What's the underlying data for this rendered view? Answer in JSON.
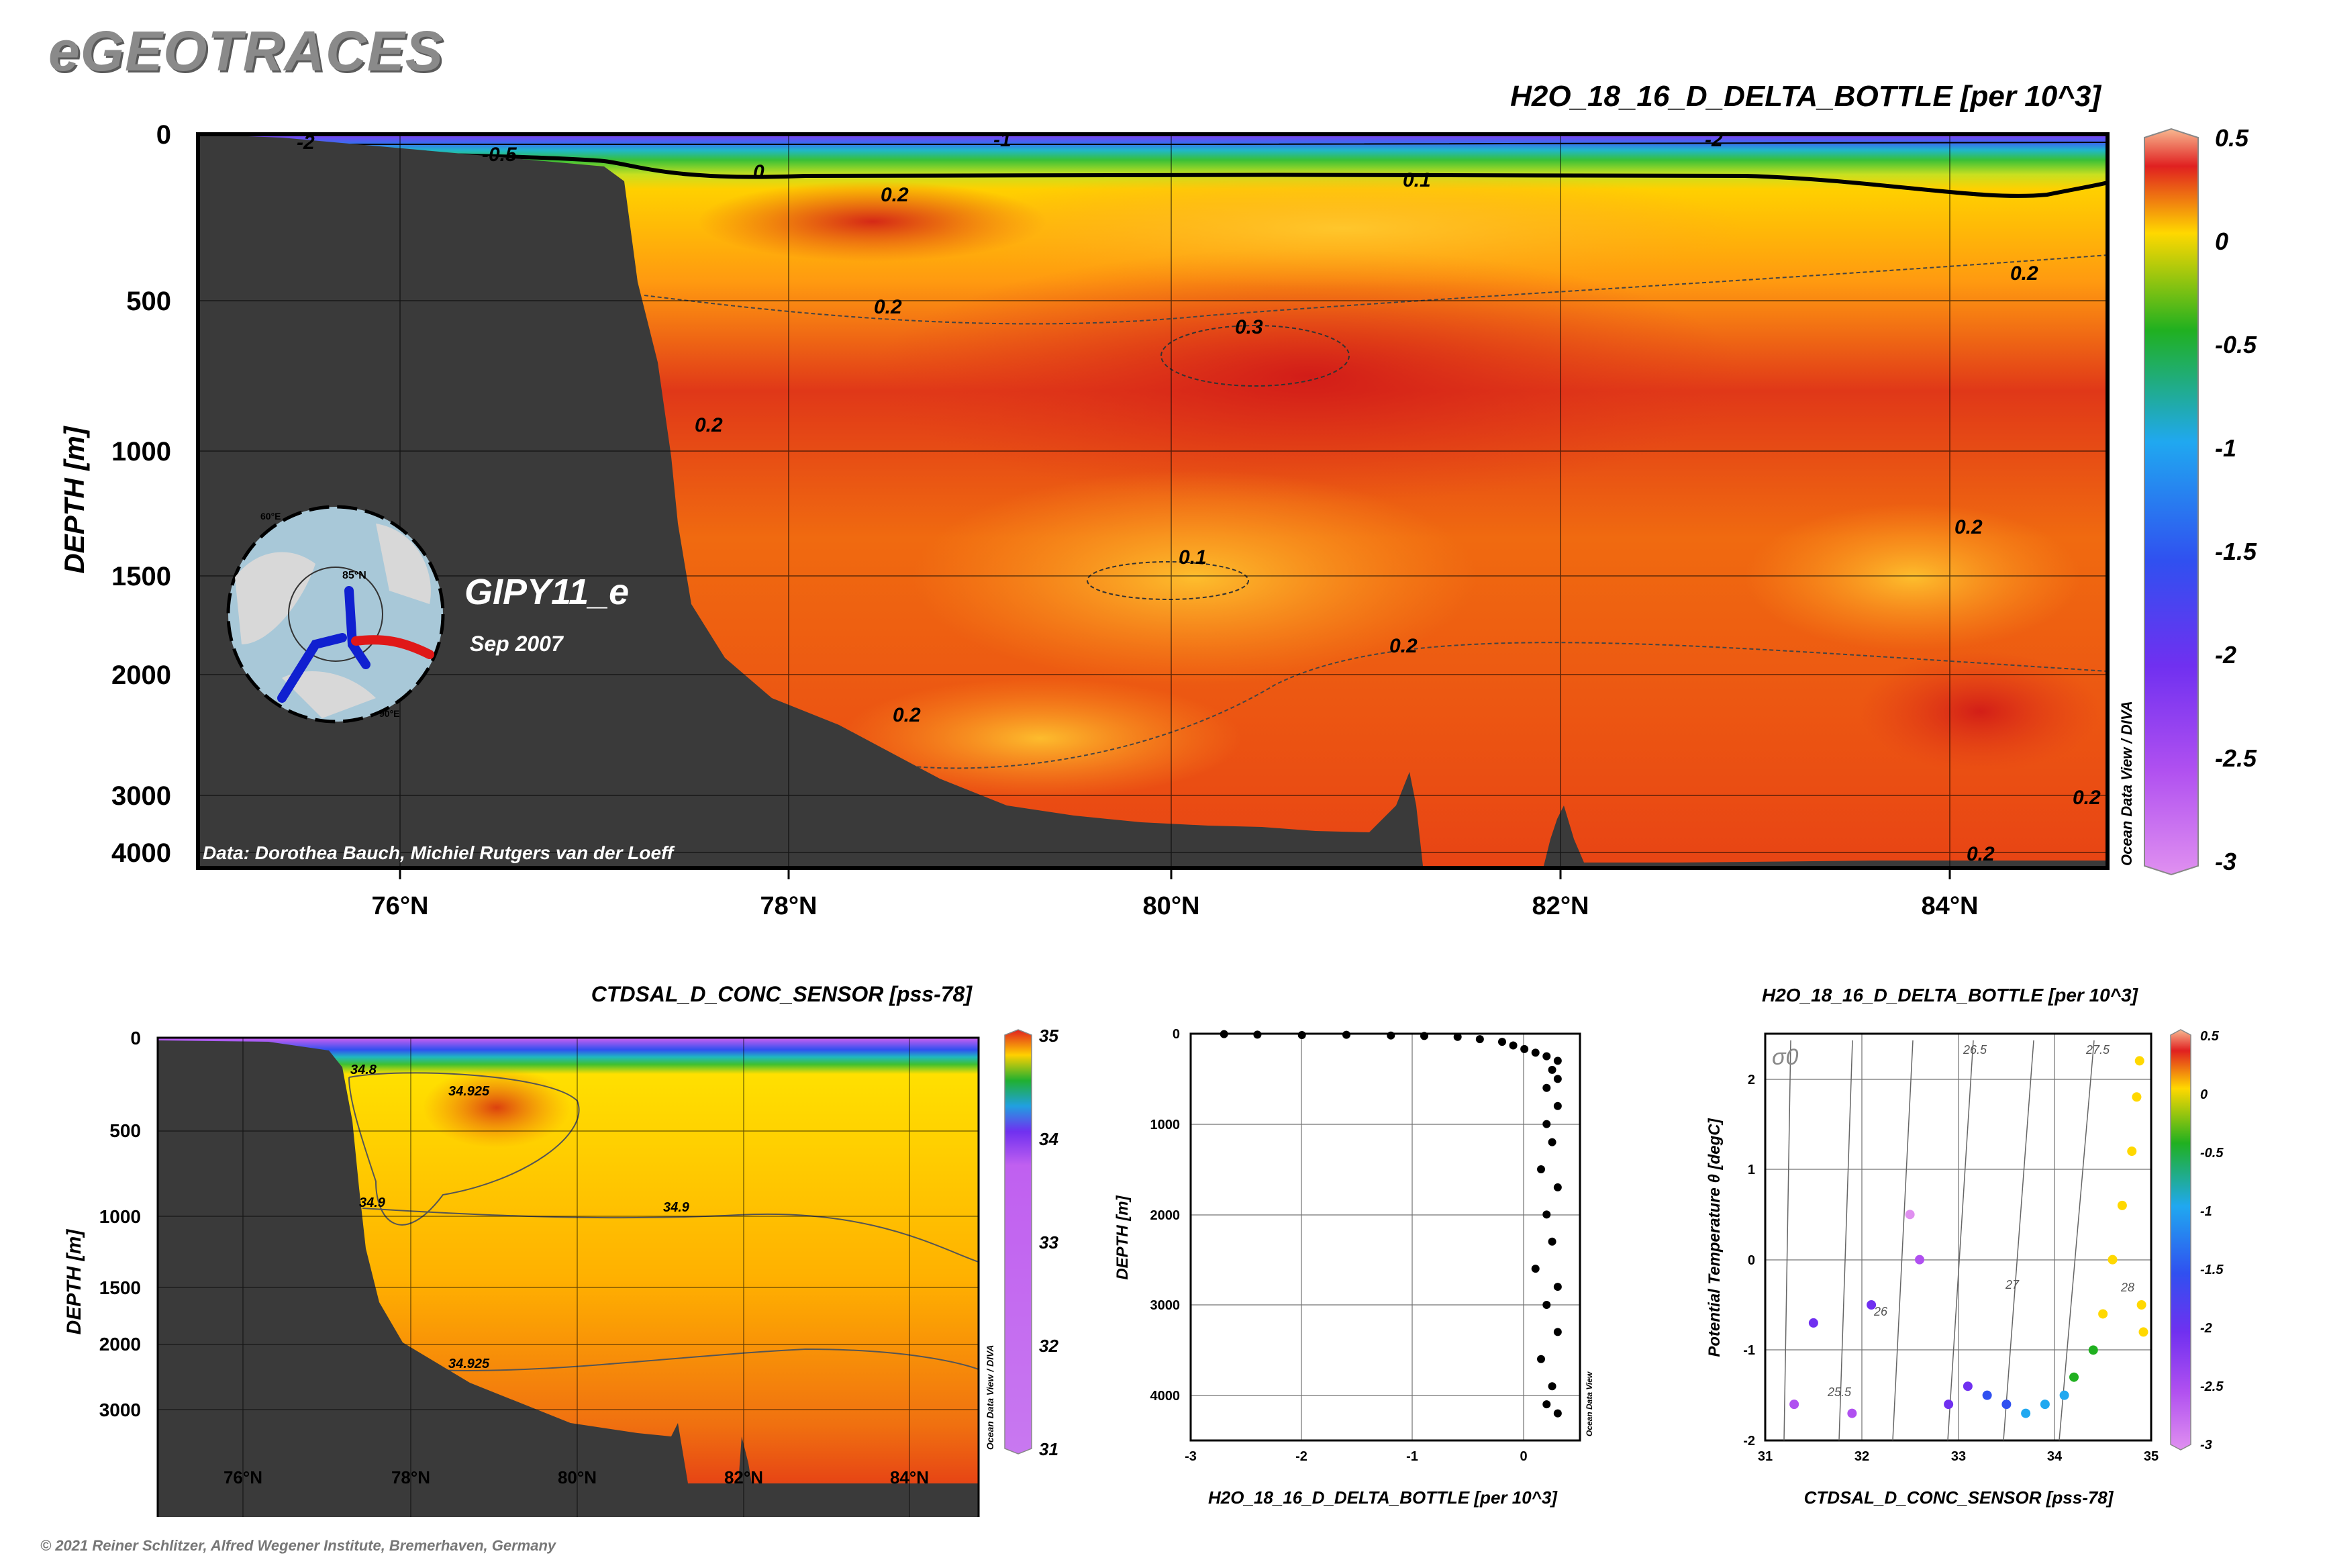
{
  "brand": "eGEOTRACES",
  "footer": "© 2021 Reiner Schlitzer, Alfred Wegener Institute, Bremerhaven, Germany",
  "colors": {
    "land": "#3a3a3a",
    "scatter_points": "#000000",
    "track_blue": "#1020d0",
    "track_red": "#e01818"
  },
  "chart_data": [
    {
      "id": "main-section",
      "type": "heatmap",
      "title": "H2O_18_16_D_DELTA_BOTTLE [per 10^3]",
      "ylabel": "DEPTH [m]",
      "x_ticks": [
        "76°N",
        "78°N",
        "80°N",
        "82°N",
        "84°N"
      ],
      "y_ticks": [
        "0",
        "500",
        "1000",
        "1500",
        "2000",
        "3000",
        "4000"
      ],
      "colorbar": {
        "ticks": [
          "0.5",
          "0",
          "-0.5",
          "-1",
          "-1.5",
          "-2",
          "-2.5",
          "-3"
        ],
        "range": [
          -3,
          0.5
        ]
      },
      "contour_labels": [
        "-2",
        "-0.5",
        "-1",
        "-2",
        "0",
        "0.1",
        "0.2",
        "0.2",
        "0.3",
        "0.2",
        "0.2",
        "0.1",
        "0.2",
        "0.2",
        "0.2",
        "0.2",
        "0.2"
      ],
      "station_label": "GIPY11_e",
      "date_label": "Sep 2007",
      "credit": "Data: Dorothea Bauch, Michiel Rutgers van der Loeff",
      "watermark": "Ocean Data View / DIVA",
      "inset_map": {
        "labels": [
          "85°N",
          "60°E",
          "90°E"
        ]
      }
    },
    {
      "id": "salinity-section",
      "type": "heatmap",
      "title": "CTDSAL_D_CONC_SENSOR [pss-78]",
      "ylabel": "DEPTH [m]",
      "x_ticks": [
        "76°N",
        "78°N",
        "80°N",
        "82°N",
        "84°N"
      ],
      "y_ticks": [
        "0",
        "500",
        "1000",
        "1500",
        "2000",
        "3000"
      ],
      "colorbar": {
        "ticks": [
          "35",
          "34",
          "33",
          "32",
          "31"
        ],
        "range": [
          31,
          35
        ]
      },
      "contour_labels": [
        "34.8",
        "34.925",
        "34.9",
        "34.9",
        "34.925"
      ],
      "watermark": "Ocean Data View / DIVA"
    },
    {
      "id": "profile",
      "type": "scatter",
      "xlabel": "H2O_18_16_D_DELTA_BOTTLE [per 10^3]",
      "ylabel": "DEPTH [m]",
      "xlim": [
        -3,
        0.5
      ],
      "ylim": [
        4500,
        0
      ],
      "x_ticks": [
        "-3",
        "-2",
        "-1",
        "0"
      ],
      "y_ticks": [
        "0",
        "1000",
        "2000",
        "3000",
        "4000"
      ],
      "watermark": "Ocean Data View",
      "points": [
        {
          "x": -2.7,
          "y": 5
        },
        {
          "x": -2.4,
          "y": 10
        },
        {
          "x": -2.0,
          "y": 15
        },
        {
          "x": -1.6,
          "y": 12
        },
        {
          "x": -1.2,
          "y": 20
        },
        {
          "x": -0.9,
          "y": 25
        },
        {
          "x": -0.6,
          "y": 35
        },
        {
          "x": -0.4,
          "y": 60
        },
        {
          "x": -0.2,
          "y": 90
        },
        {
          "x": -0.1,
          "y": 130
        },
        {
          "x": 0.0,
          "y": 170
        },
        {
          "x": 0.1,
          "y": 210
        },
        {
          "x": 0.2,
          "y": 250
        },
        {
          "x": 0.3,
          "y": 300
        },
        {
          "x": 0.25,
          "y": 400
        },
        {
          "x": 0.3,
          "y": 500
        },
        {
          "x": 0.2,
          "y": 600
        },
        {
          "x": 0.3,
          "y": 800
        },
        {
          "x": 0.2,
          "y": 1000
        },
        {
          "x": 0.25,
          "y": 1200
        },
        {
          "x": 0.15,
          "y": 1500
        },
        {
          "x": 0.3,
          "y": 1700
        },
        {
          "x": 0.2,
          "y": 2000
        },
        {
          "x": 0.25,
          "y": 2300
        },
        {
          "x": 0.1,
          "y": 2600
        },
        {
          "x": 0.3,
          "y": 2800
        },
        {
          "x": 0.2,
          "y": 3000
        },
        {
          "x": 0.3,
          "y": 3300
        },
        {
          "x": 0.15,
          "y": 3600
        },
        {
          "x": 0.25,
          "y": 3900
        },
        {
          "x": 0.2,
          "y": 4100
        },
        {
          "x": 0.3,
          "y": 4200
        }
      ]
    },
    {
      "id": "ts-diagram",
      "type": "scatter",
      "title": "H2O_18_16_D_DELTA_BOTTLE [per 10^3]",
      "xlabel": "CTDSAL_D_CONC_SENSOR [pss-78]",
      "ylabel": "Potential Temperature θ [degC]",
      "xlim": [
        31,
        35
      ],
      "ylim": [
        -2,
        2.5
      ],
      "x_ticks": [
        "31",
        "32",
        "33",
        "34",
        "35"
      ],
      "y_ticks": [
        "2",
        "1",
        "0",
        "-1",
        "-2"
      ],
      "sigma_label": "σ0",
      "isopycnal_labels": [
        "25.5",
        "26",
        "26.5",
        "27",
        "27.5",
        "28"
      ],
      "colorbar": {
        "ticks": [
          "0.5",
          "0",
          "-0.5",
          "-1",
          "-1.5",
          "-2",
          "-2.5",
          "-3"
        ],
        "range": [
          -3,
          0.5
        ]
      },
      "points": [
        {
          "x": 31.3,
          "y": -1.6,
          "c": -2.4
        },
        {
          "x": 31.5,
          "y": -0.7,
          "c": -1.8
        },
        {
          "x": 31.9,
          "y": -1.7,
          "c": -2.2
        },
        {
          "x": 32.1,
          "y": -0.5,
          "c": -2.0
        },
        {
          "x": 32.5,
          "y": 0.5,
          "c": -2.6
        },
        {
          "x": 32.6,
          "y": 0.0,
          "c": -2.3
        },
        {
          "x": 32.9,
          "y": -1.6,
          "c": -2.0
        },
        {
          "x": 33.1,
          "y": -1.4,
          "c": -1.7
        },
        {
          "x": 33.3,
          "y": -1.5,
          "c": -1.4
        },
        {
          "x": 33.5,
          "y": -1.6,
          "c": -1.2
        },
        {
          "x": 33.7,
          "y": -1.7,
          "c": -1.0
        },
        {
          "x": 33.9,
          "y": -1.6,
          "c": -0.8
        },
        {
          "x": 34.1,
          "y": -1.5,
          "c": -0.6
        },
        {
          "x": 34.2,
          "y": -1.3,
          "c": -0.4
        },
        {
          "x": 34.4,
          "y": -1.0,
          "c": -0.2
        },
        {
          "x": 34.5,
          "y": -0.6,
          "c": 0.0
        },
        {
          "x": 34.6,
          "y": 0.0,
          "c": 0.1
        },
        {
          "x": 34.7,
          "y": 0.6,
          "c": 0.15
        },
        {
          "x": 34.8,
          "y": 1.2,
          "c": 0.2
        },
        {
          "x": 34.85,
          "y": 1.8,
          "c": 0.25
        },
        {
          "x": 34.88,
          "y": 2.2,
          "c": 0.3
        },
        {
          "x": 34.9,
          "y": -0.5,
          "c": 0.2
        },
        {
          "x": 34.92,
          "y": -0.8,
          "c": 0.25
        }
      ]
    }
  ]
}
